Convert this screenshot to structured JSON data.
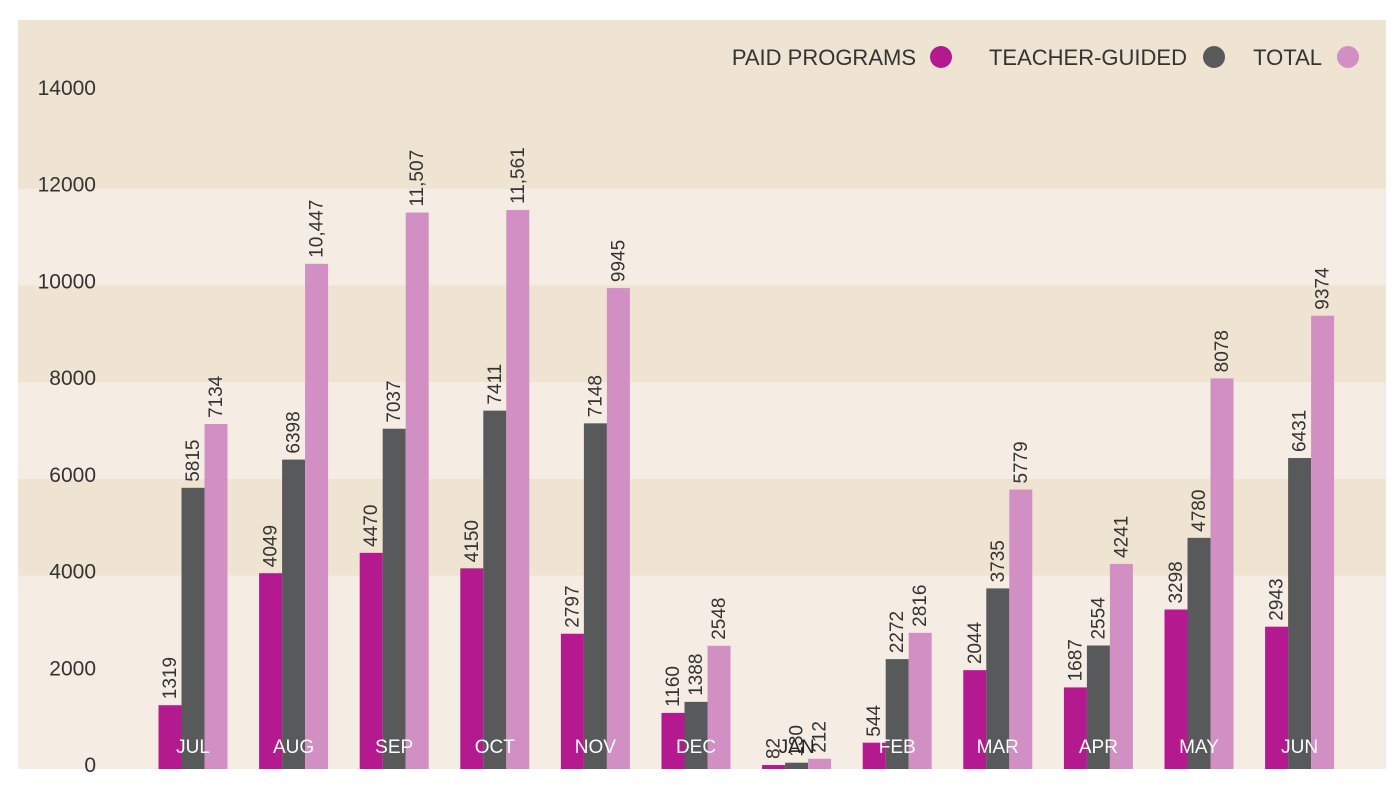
{
  "chart_data": {
    "type": "bar",
    "title": "",
    "xlabel": "",
    "ylabel": "",
    "ylim": [
      0,
      14000
    ],
    "yticks": [
      0,
      2000,
      4000,
      6000,
      8000,
      10000,
      12000,
      14000
    ],
    "grid": "alternating horizontal bands",
    "legend_position": "top-right",
    "categories": [
      "JUL",
      "AUG",
      "SEP",
      "OCT",
      "NOV",
      "DEC",
      "JAN",
      "FEB",
      "MAR",
      "APR",
      "MAY",
      "JUN"
    ],
    "series": [
      {
        "name": "PAID PROGRAMS",
        "color": "#b5198f",
        "values": [
          1319,
          4049,
          4470,
          4150,
          2797,
          1160,
          82,
          544,
          2044,
          1687,
          3298,
          2943
        ],
        "labels": [
          "1319",
          "4049",
          "4470",
          "4150",
          "2797",
          "1160",
          "82",
          "544",
          "2044",
          "1687",
          "3298",
          "2943"
        ]
      },
      {
        "name": "TEACHER-GUIDED",
        "color": "#58595b",
        "values": [
          5815,
          6398,
          7037,
          7411,
          7148,
          1388,
          130,
          2272,
          3735,
          2554,
          4780,
          6431
        ],
        "labels": [
          "5815",
          "6398",
          "7037",
          "7411",
          "7148",
          "1388",
          "130",
          "2272",
          "3735",
          "2554",
          "4780",
          "6431"
        ]
      },
      {
        "name": "TOTAL",
        "color": "#d18fc4",
        "values": [
          7134,
          10447,
          11507,
          11561,
          9945,
          2548,
          212,
          2816,
          5779,
          4241,
          8078,
          9374
        ],
        "labels": [
          "7134",
          "10,447",
          "11,507",
          "11,561",
          "9945",
          "2548",
          "212",
          "2816",
          "5779",
          "4241",
          "8078",
          "9374"
        ]
      }
    ],
    "band_colors": [
      "#f5ede3",
      "#efe3d2"
    ]
  }
}
